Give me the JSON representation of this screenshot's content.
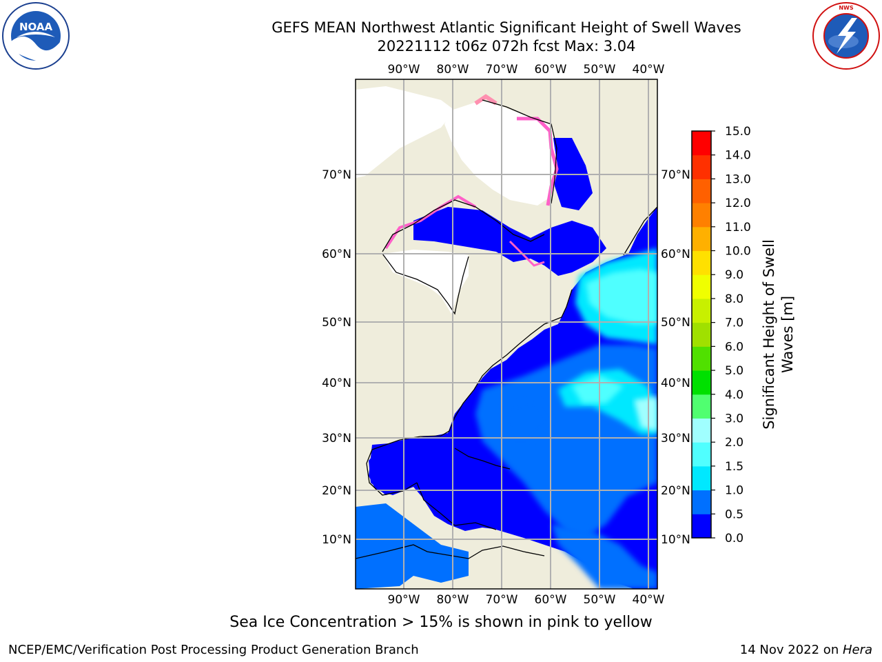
{
  "title": {
    "line1": "GEFS MEAN Northwest Atlantic Significant Height of Swell Waves",
    "line2": "20221112 t06z 072h fcst   Max: 3.04"
  },
  "logos": {
    "noaa_text": "NOAA",
    "noaa_ring": "NATIONAL OCEANIC AND ATMOSPHERIC ADMINISTRATION",
    "noaa_ring_bottom": "U.S. DEPARTMENT OF COMMERCE",
    "nws_ring": "NATIONAL WEATHER SERVICE"
  },
  "map": {
    "lon_labels": [
      "90°W",
      "80°W",
      "70°W",
      "60°W",
      "50°W",
      "40°W"
    ],
    "lat_labels": [
      "70°N",
      "60°N",
      "50°N",
      "40°N",
      "30°N",
      "20°N",
      "10°N"
    ],
    "colors": {
      "land": "#efeddc",
      "ice_free_white": "#ffffff",
      "grid": "#b0b0b0",
      "coast": "#000000"
    }
  },
  "colorbar": {
    "label_line1": "Significant Height of Swell",
    "label_line2": "Waves [m]",
    "ticks": [
      "0.0",
      "0.5",
      "1.0",
      "1.5",
      "2.0",
      "3.0",
      "4.0",
      "5.0",
      "6.0",
      "7.0",
      "8.0",
      "9.0",
      "10.0",
      "11.0",
      "12.0",
      "13.0",
      "14.0",
      "15.0"
    ],
    "colors": [
      "#0000ff",
      "#0070ff",
      "#00e8ff",
      "#50ffff",
      "#a0ffff",
      "#50ff70",
      "#00e000",
      "#50e000",
      "#a0e000",
      "#c8f000",
      "#f0ff00",
      "#ffe000",
      "#ffb000",
      "#ff8000",
      "#ff6000",
      "#ff3000",
      "#ff0000"
    ]
  },
  "footer": {
    "caption": "Sea Ice Concentration > 15% is shown in pink to yellow",
    "credit": "NCEP/EMC/Verification Post Processing Product Generation Branch",
    "date_prefix": "14 Nov 2022 on ",
    "date_host": "Hera"
  }
}
